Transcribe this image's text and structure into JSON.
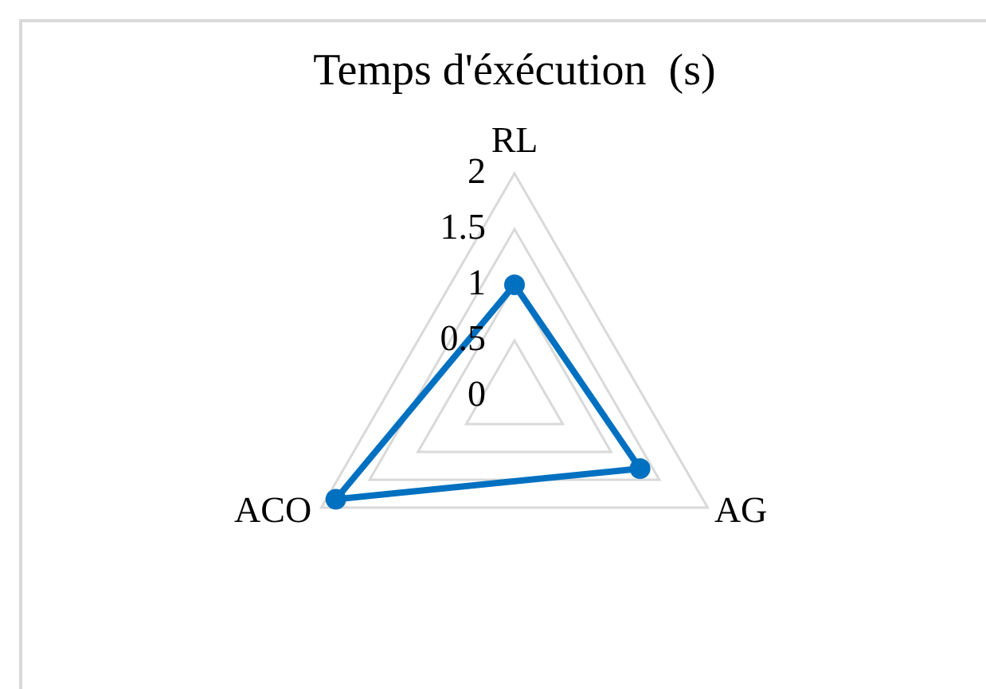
{
  "chart_data": {
    "type": "radar",
    "title": "Temps d'éxécution  (s)",
    "categories": [
      "RL",
      "AG",
      "ACO"
    ],
    "series": [
      {
        "color": "#0070c0",
        "values": [
          1,
          1.3,
          1.85
        ]
      }
    ],
    "ylim": [
      0,
      2
    ],
    "yticks": [
      0,
      0.5,
      1,
      1.5,
      2
    ],
    "grid": true,
    "marker": "circle",
    "line_style": "solid"
  }
}
